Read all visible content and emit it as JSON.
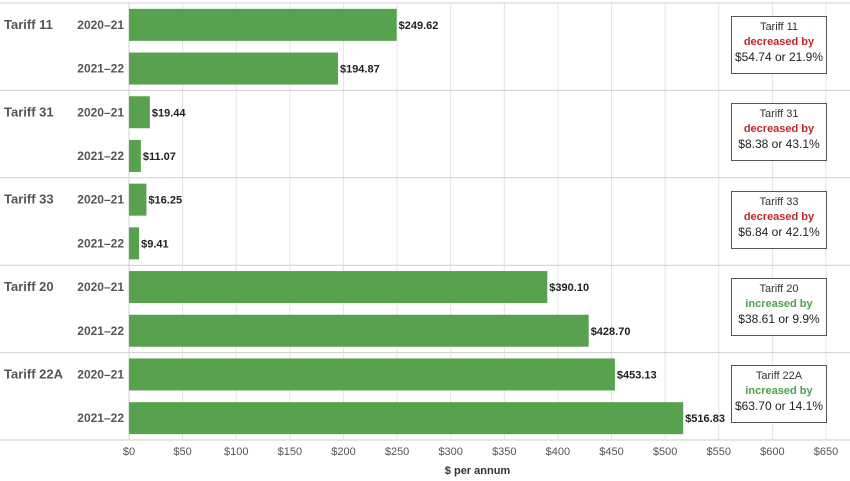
{
  "chart_data": {
    "type": "bar",
    "orientation": "horizontal",
    "xlabel": "$ per annum",
    "xlim": [
      0,
      650
    ],
    "x_ticks": [
      "$0",
      "$50",
      "$100",
      "$150",
      "$200",
      "$250",
      "$300",
      "$350",
      "$400",
      "$450",
      "$500",
      "$550",
      "$600",
      "$650"
    ],
    "groups": [
      {
        "name": "Tariff 11",
        "bars": [
          {
            "year": "2020–21",
            "value": 249.62,
            "label": "$249.62"
          },
          {
            "year": "2021–22",
            "value": 194.87,
            "label": "$194.87"
          }
        ],
        "note": {
          "title": "Tariff 11",
          "change": "decreased by",
          "amount": "$54.74 or 21.9%"
        }
      },
      {
        "name": "Tariff 31",
        "bars": [
          {
            "year": "2020–21",
            "value": 19.44,
            "label": "$19.44"
          },
          {
            "year": "2021–22",
            "value": 11.07,
            "label": "$11.07"
          }
        ],
        "note": {
          "title": "Tariff 31",
          "change": "decreased by",
          "amount": "$8.38 or 43.1%"
        }
      },
      {
        "name": "Tariff 33",
        "bars": [
          {
            "year": "2020–21",
            "value": 16.25,
            "label": "$16.25"
          },
          {
            "year": "2021–22",
            "value": 9.41,
            "label": "$9.41"
          }
        ],
        "note": {
          "title": "Tariff 33",
          "change": "decreased by",
          "amount": "$6.84 or 42.1%"
        }
      },
      {
        "name": "Tariff 20",
        "bars": [
          {
            "year": "2020–21",
            "value": 390.1,
            "label": "$390.10"
          },
          {
            "year": "2021–22",
            "value": 428.7,
            "label": "$428.70"
          }
        ],
        "note": {
          "title": "Tariff 20",
          "change": "increased by",
          "amount": "$38.61 or 9.9%"
        }
      },
      {
        "name": "Tariff 22A",
        "bars": [
          {
            "year": "2020–21",
            "value": 453.13,
            "label": "$453.13"
          },
          {
            "year": "2021–22",
            "value": 516.83,
            "label": "$516.83"
          }
        ],
        "note": {
          "title": "Tariff 22A",
          "change": "increased by",
          "amount": "$63.70 or 14.1%"
        }
      }
    ]
  },
  "colors": {
    "bar": "#58a14e",
    "decrease": "#c0282d",
    "increase": "#4ca24a"
  }
}
